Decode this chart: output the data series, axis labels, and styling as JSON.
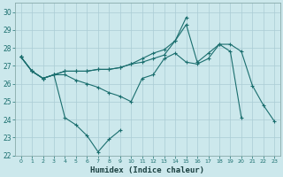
{
  "xlabel": "Humidex (Indice chaleur)",
  "background_color": "#cce8ec",
  "grid_color": "#aaccd4",
  "line_color": "#1a6e6e",
  "xlim": [
    -0.5,
    23.5
  ],
  "ylim": [
    22,
    30.5
  ],
  "xticks": [
    0,
    1,
    2,
    3,
    4,
    5,
    6,
    7,
    8,
    9,
    10,
    11,
    12,
    13,
    14,
    15,
    16,
    17,
    18,
    19,
    20,
    21,
    22,
    23
  ],
  "yticks": [
    22,
    23,
    24,
    25,
    26,
    27,
    28,
    29,
    30
  ],
  "line1_x": [
    0,
    1,
    2,
    3,
    4,
    5,
    6,
    7,
    8,
    9
  ],
  "line1_y": [
    27.5,
    26.7,
    26.3,
    26.5,
    24.1,
    23.7,
    23.1,
    22.2,
    22.9,
    23.4
  ],
  "line2_x": [
    0,
    1,
    2,
    3,
    4,
    5,
    6,
    7,
    8,
    9,
    10,
    11,
    12,
    13,
    14,
    15,
    16,
    17,
    18,
    19,
    20
  ],
  "line2_y": [
    27.5,
    26.7,
    26.3,
    26.5,
    26.5,
    26.2,
    26.0,
    25.8,
    25.5,
    25.3,
    25.0,
    26.3,
    26.5,
    27.4,
    27.7,
    27.2,
    27.1,
    27.4,
    28.2,
    27.8,
    24.1
  ],
  "line3_x": [
    0,
    1,
    2,
    3,
    4,
    5,
    6,
    7,
    8,
    9,
    10,
    11,
    12,
    13,
    14,
    15,
    16,
    17,
    18,
    19,
    20,
    21,
    22,
    23
  ],
  "line3_y": [
    27.5,
    26.7,
    26.3,
    26.5,
    26.7,
    26.7,
    26.7,
    26.8,
    26.8,
    26.9,
    27.1,
    27.2,
    27.4,
    27.6,
    28.4,
    29.3,
    27.2,
    27.7,
    28.2,
    28.2,
    27.8,
    25.9,
    24.8,
    23.9
  ],
  "line4_x": [
    0,
    1,
    2,
    3,
    4,
    5,
    6,
    7,
    8,
    9,
    10,
    11,
    12,
    13,
    14,
    15
  ],
  "line4_y": [
    27.5,
    26.7,
    26.3,
    26.5,
    26.7,
    26.7,
    26.7,
    26.8,
    26.8,
    26.9,
    27.1,
    27.4,
    27.7,
    27.9,
    28.4,
    29.7
  ]
}
